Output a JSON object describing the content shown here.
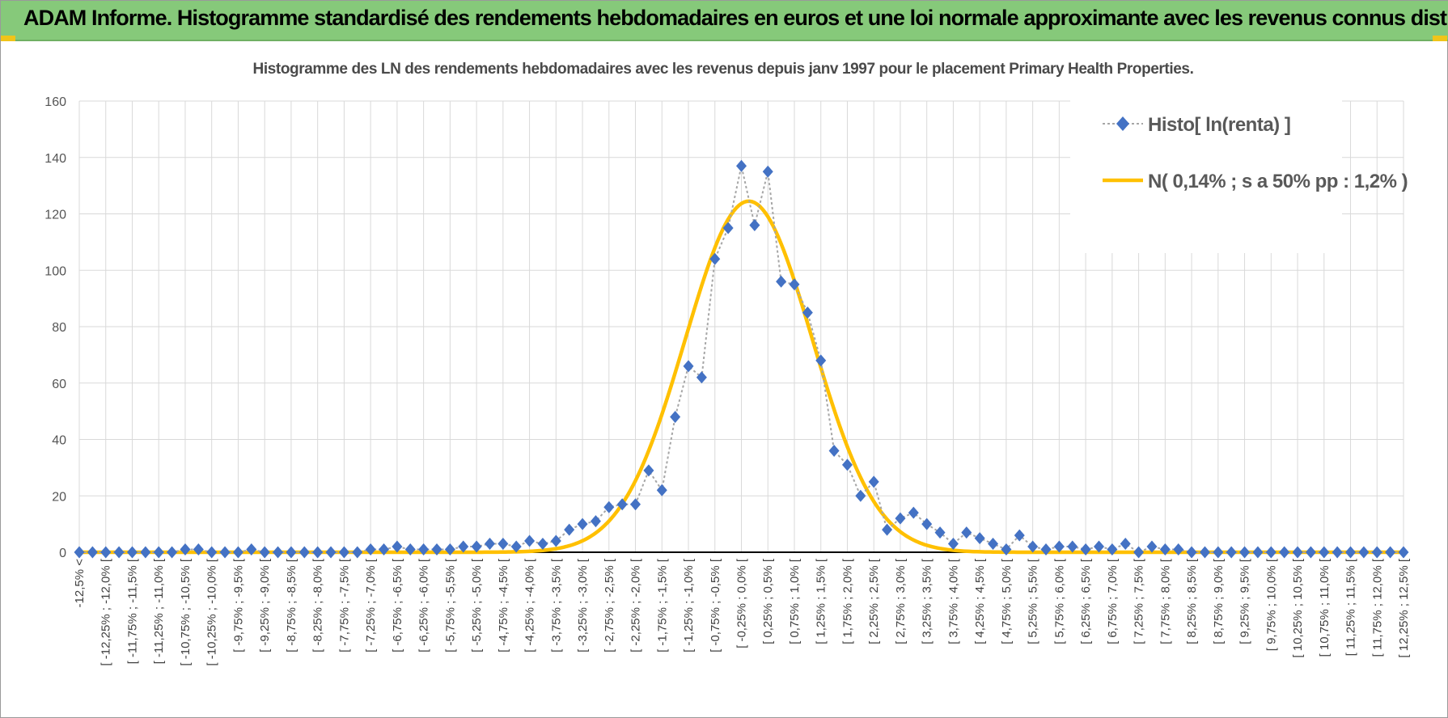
{
  "header": {
    "title": "ADAM Informe. Histogramme standardisé des rendements hebdomadaires en euros et une loi normale approximante avec les revenus connus distribués",
    "background": "#86c97a",
    "accent": "#f0c419"
  },
  "chart_data": {
    "type": "line",
    "title": "Histogramme des LN des rendements hebdomadaires avec les revenus depuis janv 1997 pour le placement Primary Health Properties.",
    "xlabel": "",
    "ylabel": "",
    "ylim": [
      0,
      160
    ],
    "yticks": [
      0,
      20,
      40,
      60,
      80,
      100,
      120,
      140,
      160
    ],
    "grid": true,
    "legend_position": "top-right",
    "categories": [
      "-12,5% <",
      "[ -12,25% ; -12,0% [",
      "[ -11,75% ; -11,5% [",
      "[ -11,25% ; -11,0% [",
      "[ -10,75% ; -10,5% [",
      "[ -10,25% ; -10,0% [",
      "[ -9,75% ; -9,5% [",
      "[ -9,25% ; -9,0% [",
      "[ -8,75% ; -8,5% [",
      "[ -8,25% ; -8,0% [",
      "[ -7,75% ; -7,5% [",
      "[ -7,25% ; -7,0% [",
      "[ -6,75% ; -6,5% [",
      "[ -6,25% ; -6,0% [",
      "[ -5,75% ; -5,5% [",
      "[ -5,25% ; -5,0% [",
      "[ -4,75% ; -4,5% [",
      "[ -4,25% ; -4,0% [",
      "[ -3,75% ; -3,5% [",
      "[ -3,25% ; -3,0% [",
      "[ -2,75% ; -2,5% [",
      "[ -2,25% ; -2,0% [",
      "[ -1,75% ; -1,5% [",
      "[ -1,25% ; -1,0% [",
      "[ -0,75% ; -0,5% [",
      "[ -0,25% ; 0,0% [",
      "[ 0,25% ; 0,5% [",
      "[ 0,75% ; 1,0% [",
      "[ 1,25% ; 1,5% [",
      "[ 1,75% ; 2,0% [",
      "[ 2,25% ; 2,5% [",
      "[ 2,75% ; 3,0% [",
      "[ 3,25% ; 3,5% [",
      "[ 3,75% ; 4,0% [",
      "[ 4,25% ; 4,5% [",
      "[ 4,75% ; 5,0% [",
      "[ 5,25% ; 5,5% [",
      "[ 5,75% ; 6,0% [",
      "[ 6,25% ; 6,5% [",
      "[ 6,75% ; 7,0% [",
      "[ 7,25% ; 7,5% [",
      "[ 7,75% ; 8,0% [",
      "[ 8,25% ; 8,5% [",
      "[ 8,75% ; 9,0% [",
      "[ 9,25% ; 9,5% [",
      "[ 9,75% ; 10,0% [",
      "[ 10,25% ; 10,5% [",
      "[ 10,75% ; 11,0% [",
      "[ 11,25% ; 11,5% [",
      "[ 11,75% ; 12,0% [",
      "[ 12,25% ; 12,5% ["
    ],
    "series": [
      {
        "name": "Histo[ ln(renta) ]",
        "color": "#4472c4",
        "line_color": "#a6a6a6",
        "x": [
          -12.5,
          -12.25,
          -12,
          -11.75,
          -11.5,
          -11.25,
          -11,
          -10.75,
          -10.5,
          -10.25,
          -10,
          -9.75,
          -9.5,
          -9.25,
          -9,
          -8.75,
          -8.5,
          -8.25,
          -8,
          -7.75,
          -7.5,
          -7.25,
          -7,
          -6.75,
          -6.5,
          -6.25,
          -6,
          -5.75,
          -5.5,
          -5.25,
          -5,
          -4.75,
          -4.5,
          -4.25,
          -4,
          -3.75,
          -3.5,
          -3.25,
          -3,
          -2.75,
          -2.5,
          -2.25,
          -2,
          -1.75,
          -1.5,
          -1.25,
          -1,
          -0.75,
          -0.5,
          -0.25,
          0,
          0.25,
          0.5,
          0.75,
          1,
          1.25,
          1.5,
          1.75,
          2,
          2.25,
          2.5,
          2.75,
          3,
          3.25,
          3.5,
          3.75,
          4,
          4.25,
          4.5,
          4.75,
          5,
          5.25,
          5.5,
          5.75,
          6,
          6.25,
          6.5,
          6.75,
          7,
          7.25,
          7.5,
          7.75,
          8,
          8.25,
          8.5,
          8.75,
          9,
          9.25,
          9.5,
          9.75,
          10,
          10.25,
          10.5,
          10.75,
          11,
          11.25,
          11.5,
          11.75,
          12,
          12.25,
          12.5
        ],
        "values": [
          0,
          0,
          0,
          0,
          0,
          0,
          0,
          0,
          1,
          1,
          0,
          0,
          0,
          1,
          0,
          0,
          0,
          0,
          0,
          0,
          0,
          0,
          1,
          1,
          2,
          1,
          1,
          1,
          1,
          2,
          2,
          3,
          3,
          2,
          4,
          3,
          4,
          8,
          10,
          11,
          16,
          17,
          17,
          29,
          22,
          48,
          66,
          62,
          104,
          115,
          137,
          116,
          135,
          96,
          95,
          85,
          68,
          36,
          31,
          20,
          25,
          8,
          12,
          14,
          10,
          7,
          3,
          7,
          5,
          3,
          1,
          6,
          2,
          1,
          2,
          2,
          1,
          2,
          1,
          3,
          0,
          2,
          1,
          1,
          0,
          0,
          0,
          0,
          0,
          0,
          0,
          0,
          0,
          0,
          0,
          0,
          0,
          0,
          0,
          0,
          0
        ]
      },
      {
        "name": "N( 0,14% ; s a 50% pp : 1,2% )",
        "color": "#ffc000",
        "mean": 0.14,
        "std": 1.2,
        "peak": 124.5
      }
    ]
  }
}
